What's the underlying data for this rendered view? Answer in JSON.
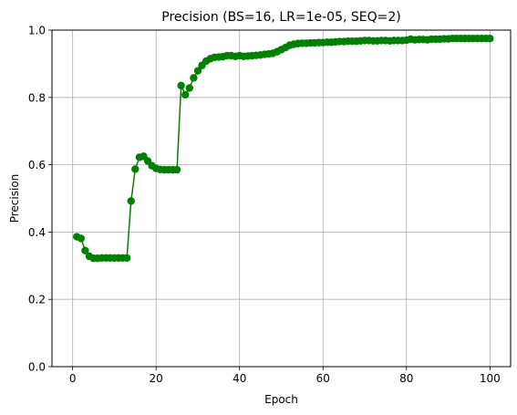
{
  "chart_data": {
    "type": "line",
    "title": "Precision (BS=16, LR=1e-05, SEQ=2)",
    "xlabel": "Epoch",
    "ylabel": "Precision",
    "xlim": [
      -4.95,
      104.95
    ],
    "ylim": [
      0,
      1.0
    ],
    "grid": true,
    "x_ticks": [
      0,
      20,
      40,
      60,
      80,
      100
    ],
    "y_ticks": [
      0.0,
      0.2,
      0.4,
      0.6,
      0.8,
      1.0
    ],
    "series": [
      {
        "color": "#008000",
        "marker": "circle",
        "x": [
          1,
          2,
          3,
          4,
          5,
          6,
          7,
          8,
          9,
          10,
          11,
          12,
          13,
          14,
          15,
          16,
          17,
          18,
          19,
          20,
          21,
          22,
          23,
          24,
          25,
          26,
          27,
          28,
          29,
          30,
          31,
          32,
          33,
          34,
          35,
          36,
          37,
          38,
          39,
          40,
          41,
          42,
          43,
          44,
          45,
          46,
          47,
          48,
          49,
          50,
          51,
          52,
          53,
          54,
          55,
          56,
          57,
          58,
          59,
          60,
          61,
          62,
          63,
          64,
          65,
          66,
          67,
          68,
          69,
          70,
          71,
          72,
          73,
          74,
          75,
          76,
          77,
          78,
          79,
          80,
          81,
          82,
          83,
          84,
          85,
          86,
          87,
          88,
          89,
          90,
          91,
          92,
          93,
          94,
          95,
          96,
          97,
          98,
          99,
          100
        ],
        "values": [
          0.386,
          0.381,
          0.345,
          0.328,
          0.322,
          0.322,
          0.323,
          0.323,
          0.323,
          0.323,
          0.323,
          0.323,
          0.323,
          0.492,
          0.587,
          0.622,
          0.625,
          0.611,
          0.597,
          0.589,
          0.586,
          0.585,
          0.585,
          0.585,
          0.585,
          0.835,
          0.808,
          0.828,
          0.858,
          0.879,
          0.895,
          0.908,
          0.915,
          0.919,
          0.92,
          0.921,
          0.924,
          0.924,
          0.922,
          0.924,
          0.922,
          0.923,
          0.924,
          0.925,
          0.926,
          0.928,
          0.929,
          0.931,
          0.936,
          0.942,
          0.948,
          0.955,
          0.958,
          0.96,
          0.961,
          0.961,
          0.962,
          0.962,
          0.963,
          0.963,
          0.964,
          0.964,
          0.965,
          0.966,
          0.966,
          0.967,
          0.967,
          0.967,
          0.968,
          0.969,
          0.969,
          0.968,
          0.968,
          0.969,
          0.969,
          0.968,
          0.969,
          0.969,
          0.969,
          0.97,
          0.973,
          0.971,
          0.972,
          0.972,
          0.971,
          0.973,
          0.973,
          0.973,
          0.974,
          0.974,
          0.975,
          0.975,
          0.975,
          0.975,
          0.975,
          0.975,
          0.975,
          0.975,
          0.975,
          0.975
        ]
      }
    ]
  }
}
